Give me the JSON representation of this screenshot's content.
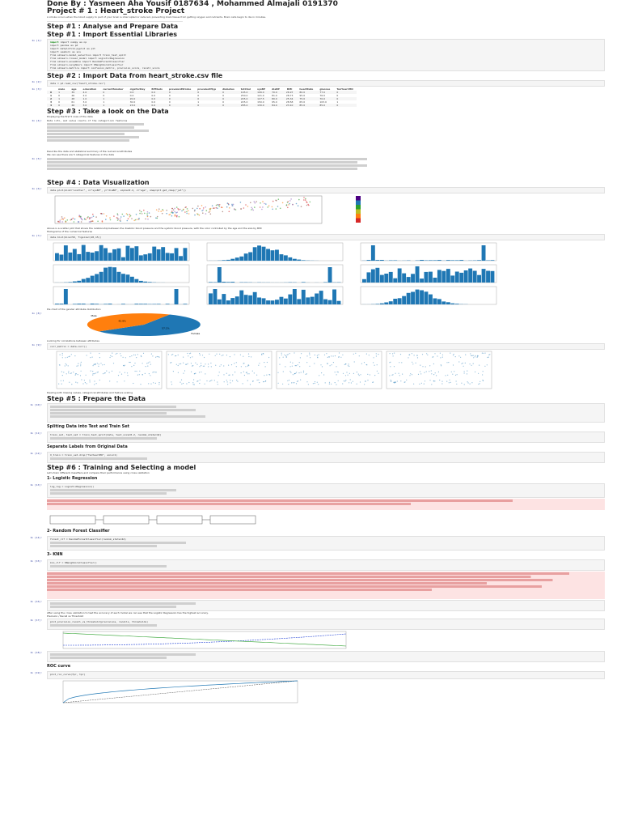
{
  "notebook": {
    "title": "Done By : Yasmeen Aha Yousif 0187634 , Mohammed Almajali 0191370",
    "project": "Project # 1 : Heart_stroke Project",
    "intro": "A stroke occurs when the blood supply to part of your brain is interrupted or reduced, preventing brain tissue from getting oxygen and nutrients. Brain cells begin to die in minutes.",
    "steps": {
      "s1": "Step #1 : Analyse and Prepare Data",
      "s1b": "Step #1 : Import Essential Libraries",
      "s2": "Step #2 : Import Data from heart_stroke.csv file",
      "s3": "Step #3 : Take a look on the Data",
      "s4": "Step #4 : Data Visualization",
      "s5": "Step #5 : Prepare the Data",
      "s6": "Step #6 : Training and Selecting a model"
    },
    "sub_headings": {
      "split": "Spliting Data into Test and Train Set",
      "labels": "Separate Labels from Original Data",
      "logreg": "1- Logistic Regression",
      "rf": "2- Random Forest Classifier",
      "knn": "3- KNN",
      "roc": "ROC curve"
    },
    "paragraphs": {
      "p_head": "Displaying the first 5 rows of the data",
      "p_info": "Data info, and value counts of the categorical features",
      "p_desc": "Describe the data and statistical summary of the numerical attributes",
      "p_cat": "We can see there are 5 categorical features in the data",
      "p_scatter": "Above is a scatter plot that shows the relationship between the diastolic blood pressure and the systolic blood pressure, with the color controlled by the age and the size by BMI",
      "p_hist": "Histograms of the numerical features",
      "p_pie": "Pie chart of the gender attribute distribution",
      "p_corr": "Looking for correlations between attributes",
      "p_prepare": "Dealing with missing values, categorical attributes and feature scaling",
      "p_train": "Let's train different classifiers and compare their performance using cross validation",
      "p_conclusion": "After using the cross validation to test the accuracy of each model we can see that the Logistic Regression has the highest accuracy.",
      "p_pr": "Precision / Recall vs Threshold"
    },
    "prompts": [
      "In [1]:",
      "In [2]:",
      "In [3]:",
      "In [4]:",
      "In [5]:",
      "In [6]:",
      "In [7]:",
      "In [8]:",
      "In [9]:",
      "In [10]:",
      "In [11]:",
      "In [12]:",
      "In [13]:",
      "In [14]:",
      "In [15]:",
      "In [16]:",
      "In [17]:",
      "In [18]:",
      "In [19]:",
      "In [20]:"
    ],
    "code": {
      "imports": [
        "import numpy as np",
        "import pandas as pd",
        "import matplotlib.pyplot as plt",
        "import seaborn as sns",
        "from sklearn.model_selection import train_test_split",
        "from sklearn.linear_model import LogisticRegression",
        "from sklearn.ensemble import RandomForestClassifier",
        "from sklearn.neighbors import KNeighborsClassifier",
        "from sklearn.metrics import confusion_matrix, precision_score, recall_score"
      ],
      "read": "data = pd.read_csv(\"heart_stroke.csv\")",
      "head": "data.head()",
      "info": "data.info()",
      "describe": "data.describe()",
      "scatter": "data.plot(kind=\"scatter\", x=\"sysBP\", y=\"diaBP\", alpha=0.4, c=\"age\", cmap=plt.get_cmap(\"jet\"))",
      "hist": "data.hist(bins=50, figsize=(20,15))",
      "pie": "data[\"male\"].value_counts().plot.pie(autopct=\"%1.1f%%\")",
      "corr": "corr_matrix = data.corr()",
      "split": "train_set, test_set = train_test_split(data, test_size=0.2, random_state=42)",
      "labels": "X_train = train_set.drop(\"TenYearCHD\", axis=1)",
      "logreg": "log_reg = LogisticRegression()",
      "rf": "forest_clf = RandomForestClassifier(random_state=42)",
      "knn": "knn_clf = KNeighborsClassifier()",
      "pr": "plot_precision_recall_vs_threshold(precisions, recalls, thresholds)",
      "roc": "plot_roc_curve(fpr, tpr)"
    },
    "head_table": {
      "columns": [
        "",
        "male",
        "age",
        "education",
        "currentSmoker",
        "cigsPerDay",
        "BPMeds",
        "prevalentStroke",
        "prevalentHyp",
        "diabetes",
        "totChol",
        "sysBP",
        "diaBP",
        "BMI",
        "heartRate",
        "glucose",
        "TenYearCHD"
      ],
      "rows": [
        [
          "0",
          "1",
          "39",
          "4.0",
          "0",
          "0.0",
          "0.0",
          "0",
          "0",
          "0",
          "195.0",
          "106.0",
          "70.0",
          "26.97",
          "80.0",
          "77.0",
          "0"
        ],
        [
          "1",
          "0",
          "46",
          "2.0",
          "0",
          "0.0",
          "0.0",
          "0",
          "0",
          "0",
          "250.0",
          "121.0",
          "81.0",
          "28.73",
          "95.0",
          "76.0",
          "0"
        ],
        [
          "2",
          "1",
          "48",
          "1.0",
          "1",
          "20.0",
          "0.0",
          "0",
          "0",
          "0",
          "245.0",
          "127.5",
          "80.0",
          "25.34",
          "75.0",
          "70.0",
          "0"
        ],
        [
          "3",
          "0",
          "61",
          "3.0",
          "1",
          "30.0",
          "0.0",
          "0",
          "1",
          "0",
          "225.0",
          "150.0",
          "95.0",
          "28.58",
          "65.0",
          "103.0",
          "1"
        ],
        [
          "4",
          "0",
          "46",
          "3.0",
          "1",
          "23.0",
          "0.0",
          "0",
          "0",
          "0",
          "285.0",
          "130.0",
          "84.0",
          "23.10",
          "85.0",
          "85.0",
          "0"
        ]
      ]
    },
    "pie": {
      "labels": [
        "Female",
        "Male"
      ],
      "values": [
        57.1,
        42.9
      ],
      "pct_labels": [
        "57.1%",
        "42.9%"
      ],
      "colors": [
        "#1f77b4",
        "#ff7f0e"
      ]
    },
    "accent": "#1f77b4",
    "warning_bg": "#fde3e3"
  }
}
